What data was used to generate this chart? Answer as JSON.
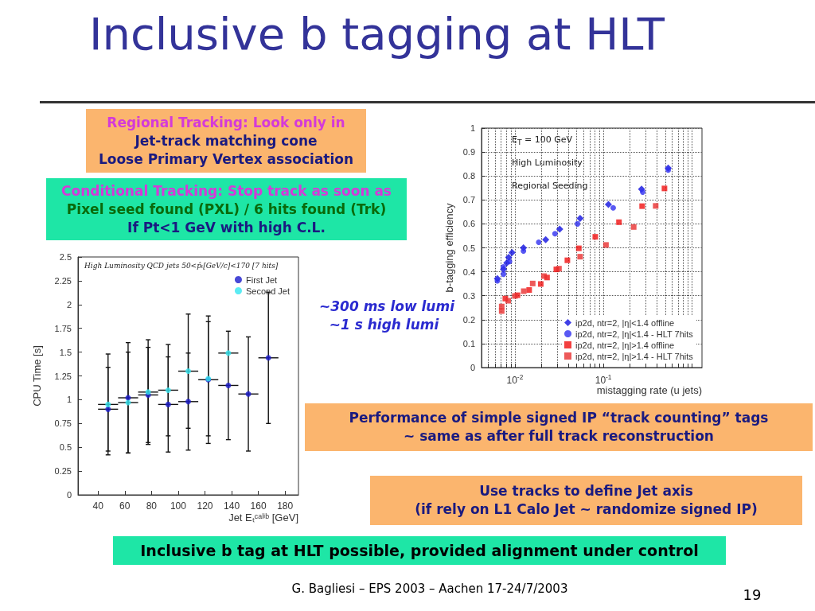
{
  "chart_data": [
    {
      "type": "other",
      "title": "Inclusive b tagging at HLT",
      "annotations": [
        "Regional Tracking: Look only in\nJet-track matching cone\nLoose Primary Vertex association",
        "Conditional Tracking: Stop track as soon as\nPixel seed found (PXL) / 6 hits found (Trk)\nIf Pt<1 GeV with high C.L.",
        "~300 ms low lumi\n~1 s high lumi",
        "Performance of simple signed IP “track counting” tags\n~ same as after full track reconstruction",
        "Use tracks to define Jet axis\n(if rely on L1 Calo Jet ~ randomize signed IP)",
        "Inclusive b tag at HLT possible, provided alignment under control",
        "G. Bagliesi – EPS 2003  – Aachen 17-24/7/2003",
        "19"
      ]
    },
    {
      "type": "scatter",
      "xlabel": "Jet Eₜᶜᵃˡⁱᵇ [GeV]",
      "ylabel": "CPU Time [s]",
      "annotations": [
        "High Luminosity QCD jets 50<p̂ₜ[GeV/c]<170 [7 hits]"
      ],
      "x": [
        47.5,
        62.5,
        77.5,
        92.5,
        107.5,
        122.5,
        137.5,
        152.5,
        167.5
      ],
      "series": [
        {
          "name": "First Jet",
          "color": "#1a1acc",
          "values": [
            0.9,
            1.02,
            1.05,
            0.95,
            0.98,
            1.21,
            1.15,
            1.06,
            1.44
          ],
          "errors": [
            0.44,
            0.58,
            0.5,
            0.5,
            0.51,
            0.67,
            0.57,
            0.6,
            0.69
          ],
          "xerrors": [
            7.5,
            7.5,
            7.5,
            7.5,
            7.5,
            7.5,
            7.5,
            7.5,
            7.5
          ]
        },
        {
          "name": "Second Jet",
          "color": "#33e6f0",
          "values": [
            0.95,
            0.97,
            1.08,
            1.1,
            1.3,
            1.22,
            1.49,
            null,
            null
          ],
          "errors": [
            0.53,
            0.53,
            0.55,
            0.48,
            0.6,
            0.6,
            null,
            null,
            null
          ],
          "xerrors": [
            7.5,
            7.5,
            7.5,
            7.5,
            7.5,
            null,
            7.5,
            null,
            null
          ]
        }
      ],
      "xlim": [
        25,
        190
      ],
      "xticks": [
        40,
        60,
        80,
        100,
        120,
        140,
        160,
        180
      ],
      "ylim": [
        0,
        2.5
      ],
      "yticks": [
        0,
        0.25,
        0.5,
        0.75,
        1,
        1.25,
        1.5,
        1.75,
        2,
        2.25,
        2.5
      ],
      "grid": false,
      "legend": "top right",
      "marker": "circle"
    },
    {
      "type": "scatter",
      "xlabel": "mistagging rate (u jets)",
      "ylabel": "b-tagging efficiency",
      "annotations": [
        "E$_{T}$ = 100 GeV",
        "High Luminosity",
        "Regional Seeding"
      ],
      "series": [
        {
          "name": "ip2d, ntr=2, |η|<1.4 offline",
          "color": "#1010e0",
          "marker": "diamond",
          "x": [
            0.00635,
            0.00744,
            0.0081,
            0.0085,
            0.0093,
            0.0125,
            0.0223,
            0.0321,
            0.0546,
            0.114,
            0.27,
            0.54
          ],
          "values": [
            0.371,
            0.41,
            0.437,
            0.46,
            0.48,
            0.5,
            0.534,
            0.578,
            0.623,
            0.681,
            0.745,
            0.833
          ]
        },
        {
          "name": "ip2d, ntr=2, |η|<1.4 - HLT 7hits",
          "color": "#3030f0",
          "marker": "circle",
          "x": [
            0.00635,
            0.00744,
            0.0074,
            0.0087,
            0.0125,
            0.0186,
            0.0284,
            0.051,
            0.129,
            0.278,
            0.54
          ],
          "values": [
            0.362,
            0.39,
            0.42,
            0.443,
            0.487,
            0.523,
            0.559,
            0.6,
            0.667,
            0.733,
            0.825
          ]
        },
        {
          "name": "ip2d, ntr=2, |η|>1.4 offline",
          "color": "#f01010",
          "marker": "square",
          "x": [
            0.0078,
            0.0107,
            0.0145,
            0.0196,
            0.0231,
            0.0294,
            0.0392,
            0.0528,
            0.081,
            0.15,
            0.274,
            0.49
          ],
          "values": [
            0.288,
            0.302,
            0.324,
            0.349,
            0.376,
            0.41,
            0.448,
            0.498,
            0.546,
            0.607,
            0.674,
            0.748
          ]
        },
        {
          "name": "ip2d, ntr=2, |η|>1.4 - HLT 7hits",
          "color": "#e83030",
          "marker": "square",
          "x": [
            0.0071,
            0.0071,
            0.0084,
            0.01,
            0.0126,
            0.0159,
            0.0213,
            0.0315,
            0.0546,
            0.107,
            0.22,
            0.39
          ],
          "values": [
            0.255,
            0.236,
            0.279,
            0.299,
            0.319,
            0.351,
            0.382,
            0.413,
            0.463,
            0.512,
            0.587,
            0.675
          ]
        }
      ],
      "log": "x",
      "xlim": [
        0.0042,
        1.3
      ],
      "xticks": [
        {
          "value": 0.005,
          "label": null
        },
        {
          "value": 0.006,
          "label": null
        },
        {
          "value": 0.007,
          "label": null
        },
        {
          "value": 0.008,
          "label": null
        },
        {
          "value": 0.009,
          "label": null
        },
        {
          "value": 0.01,
          "label": "10$^{-2}$"
        },
        {
          "value": 0.02,
          "label": null
        },
        {
          "value": 0.03,
          "label": null
        },
        {
          "value": 0.04,
          "label": null
        },
        {
          "value": 0.05,
          "label": null
        },
        {
          "value": 0.06,
          "label": null
        },
        {
          "value": 0.07,
          "label": null
        },
        {
          "value": 0.08,
          "label": null
        },
        {
          "value": 0.09,
          "label": null
        },
        {
          "value": 0.1,
          "label": "10$^{-1}$"
        },
        {
          "value": 0.2,
          "label": null
        },
        {
          "value": 0.3,
          "label": null
        },
        {
          "value": 0.4,
          "label": null
        },
        {
          "value": 0.5,
          "label": null
        },
        {
          "value": 0.6,
          "label": null
        },
        {
          "value": 0.7,
          "label": null
        },
        {
          "value": 0.8,
          "label": null
        },
        {
          "value": 0.9,
          "label": null
        },
        {
          "value": 1,
          "label": null
        }
      ],
      "ylim": [
        0,
        1
      ],
      "yticks": [
        0,
        0.1,
        0.2,
        0.3,
        0.4,
        0.5,
        0.6,
        0.7,
        0.8,
        0.9,
        1
      ],
      "grid": true,
      "legend": "bottom right"
    }
  ]
}
